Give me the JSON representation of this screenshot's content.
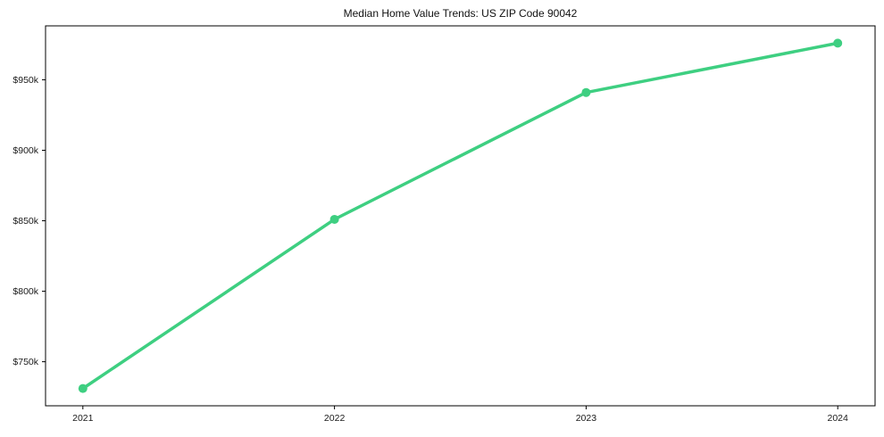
{
  "chart_data": {
    "type": "line",
    "title": "Median Home Value Trends: US ZIP Code 90042",
    "x": [
      2021,
      2022,
      2023,
      2024
    ],
    "x_tick_labels": [
      "2021",
      "2022",
      "2023",
      "2024"
    ],
    "series": [
      {
        "name": "Median Home Value",
        "values": [
          731000,
          851000,
          941000,
          976000
        ]
      }
    ],
    "y_tick_values": [
      750000,
      800000,
      850000,
      900000,
      950000
    ],
    "y_tick_labels": [
      "$750k",
      "$800k",
      "$850k",
      "$900k",
      "$950k"
    ],
    "ylim": [
      718750,
      988250
    ],
    "xlabel": "",
    "ylabel": "",
    "grid": false,
    "legend": "none",
    "marker": "circle",
    "colors": {
      "line": "#3ecf81",
      "frame": "#000000",
      "tick_text": "#1a1a1a",
      "background": "#ffffff"
    }
  }
}
